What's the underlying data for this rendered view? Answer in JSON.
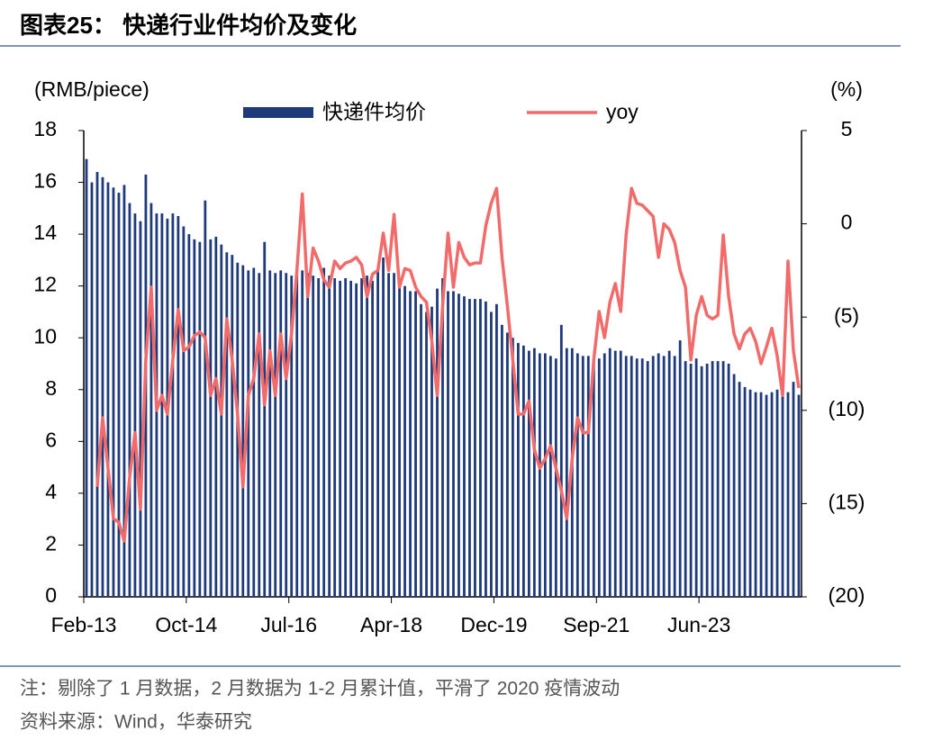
{
  "chart_data": {
    "type": "bar",
    "title": "图表25： 快递行业件均价及变化",
    "y_label": "(RMB/piece)",
    "y2_label": "(%)",
    "legend": "top",
    "categories": [
      "Feb-13",
      null,
      null,
      null,
      null,
      null,
      null,
      null,
      null,
      null,
      null,
      null,
      null,
      null,
      null,
      null,
      null,
      null,
      null,
      "Oct-14",
      null,
      null,
      null,
      null,
      null,
      null,
      null,
      null,
      null,
      null,
      null,
      null,
      null,
      null,
      null,
      null,
      null,
      null,
      "Jul-16",
      null,
      null,
      null,
      null,
      null,
      null,
      null,
      null,
      null,
      null,
      null,
      null,
      null,
      null,
      null,
      null,
      null,
      null,
      "Apr-18",
      null,
      null,
      null,
      null,
      null,
      null,
      null,
      null,
      null,
      null,
      null,
      null,
      null,
      null,
      null,
      null,
      null,
      null,
      "Dec-19",
      null,
      null,
      null,
      null,
      null,
      null,
      null,
      null,
      null,
      null,
      null,
      null,
      null,
      null,
      null,
      null,
      null,
      null,
      "Sep-21",
      null,
      null,
      null,
      null,
      null,
      null,
      null,
      null,
      null,
      null,
      null,
      null,
      null,
      null,
      null,
      null,
      null,
      null,
      "Jun-23",
      null,
      null,
      null,
      null,
      null,
      null,
      null,
      null,
      null,
      null,
      null,
      null,
      null,
      null,
      null,
      null,
      null,
      null
    ],
    "series": [
      {
        "name": "快递件均价",
        "type": "bar",
        "color": "#1f3a7a",
        "values": [
          16.9,
          16.0,
          16.4,
          16.2,
          16.0,
          15.8,
          15.6,
          15.9,
          15.2,
          14.8,
          14.5,
          16.3,
          15.2,
          14.8,
          14.8,
          14.6,
          14.8,
          14.7,
          14.3,
          14.0,
          13.8,
          13.7,
          15.3,
          13.8,
          13.9,
          13.6,
          13.3,
          13.2,
          12.9,
          12.8,
          12.6,
          12.7,
          12.5,
          13.7,
          12.6,
          12.5,
          12.6,
          12.5,
          12.4,
          12.7,
          12.6,
          12.5,
          12.4,
          12.3,
          12.7,
          12.4,
          12.3,
          12.2,
          12.3,
          12.2,
          12.1,
          12.3,
          12.4,
          12.2,
          12.6,
          13.1,
          12.5,
          12.5,
          12.2,
          12.0,
          11.8,
          11.8,
          11.3,
          11.0,
          11.2,
          11.9,
          12.3,
          11.8,
          11.8,
          11.7,
          11.6,
          11.5,
          11.5,
          11.5,
          11.4,
          11.0,
          11.3,
          10.5,
          10.2,
          10.0,
          9.8,
          9.7,
          9.5,
          9.6,
          9.4,
          9.4,
          9.3,
          9.2,
          10.5,
          9.6,
          9.6,
          9.4,
          9.3,
          9.3,
          9.1,
          9.2,
          9.4,
          9.6,
          9.5,
          9.5,
          9.3,
          9.3,
          9.2,
          9.2,
          9.1,
          9.3,
          9.4,
          9.3,
          9.5,
          9.3,
          9.9,
          9.1,
          9.0,
          9.2,
          8.9,
          9.0,
          9.1,
          9.1,
          9.1,
          9.0,
          8.6,
          8.3,
          8.1,
          8.0,
          7.9,
          7.9,
          7.8,
          7.9,
          8.0,
          8.0,
          7.9,
          8.3,
          7.8
        ]
      },
      {
        "name": "yoy",
        "type": "line",
        "axis": "y2",
        "color": "#f26b6b",
        "values": [
          null,
          null,
          -14.1,
          -10.4,
          -13.1,
          -15.8,
          -16.0,
          -17.0,
          -13.6,
          -11.2,
          -15.3,
          -7.3,
          -3.4,
          -10.0,
          -9.2,
          -10.2,
          -7.3,
          -4.6,
          -6.8,
          -6.6,
          -6.0,
          -5.8,
          -6.1,
          -9.2,
          -8.3,
          -10.2,
          -5.1,
          -7.3,
          -10.2,
          -14.1,
          -9.2,
          -8.3,
          -5.9,
          -9.7,
          -6.8,
          -9.2,
          -5.9,
          -8.3,
          -5.9,
          -2.5,
          1.6,
          -3.9,
          -1.3,
          -2.0,
          -3.0,
          -3.4,
          -2.0,
          -2.4,
          -2.1,
          -2.0,
          -1.8,
          -2.2,
          -3.9,
          -2.7,
          -2.5,
          -0.5,
          -2.5,
          0.5,
          -3.4,
          -2.4,
          -2.5,
          -3.4,
          -3.9,
          -4.2,
          -6.3,
          -9.2,
          -4.4,
          -0.5,
          -3.4,
          -1.0,
          -1.8,
          -2.2,
          -2.1,
          -2.1,
          -0.1,
          1.1,
          1.9,
          -1.8,
          -4.4,
          -7.3,
          -10.2,
          -10.2,
          -9.5,
          -12.1,
          -13.1,
          -12.6,
          -11.9,
          -13.1,
          -14.3,
          -15.8,
          -12.6,
          -10.4,
          -11.2,
          -11.2,
          -7.3,
          -4.7,
          -6.1,
          -4.2,
          -3.2,
          -4.7,
          -0.6,
          1.9,
          1.1,
          1.0,
          0.7,
          0.4,
          -1.8,
          0,
          -0.3,
          -1.0,
          -2.5,
          -3.4,
          -7.3,
          -4.9,
          -3.9,
          -4.9,
          -5.1,
          -4.9,
          -0.6,
          -3.9,
          -5.9,
          -6.7,
          -5.9,
          -5.6,
          -6.3,
          -7.5,
          -6.6,
          -5.6,
          -7.1,
          -9.2,
          -2.0,
          -6.8,
          -8.8
        ]
      }
    ],
    "ylim": [
      0,
      18
    ],
    "yticks": [
      0,
      2,
      4,
      6,
      8,
      10,
      12,
      14,
      16,
      18
    ],
    "y2lim": [
      -20,
      5
    ],
    "y2ticks": [
      {
        "value": -20,
        "label": "(20)"
      },
      {
        "value": -15,
        "label": "(15)"
      },
      {
        "value": -10,
        "label": "(10)"
      },
      {
        "value": -5,
        "label": "(5)"
      },
      0,
      5
    ],
    "grid": false
  },
  "notes": [
    "注：剔除了 1 月数据，2 月数据为 1-2 月累计值，平滑了 2020 疫情波动",
    "资料来源：Wind，华泰研究"
  ]
}
